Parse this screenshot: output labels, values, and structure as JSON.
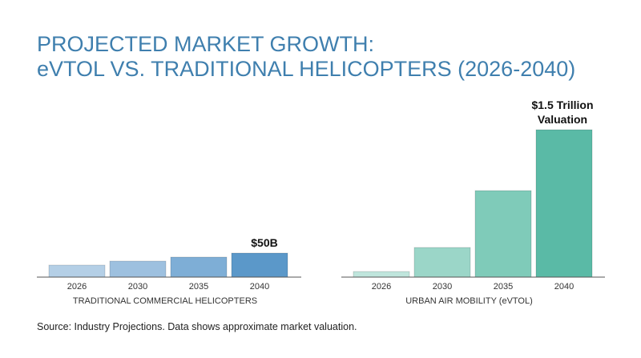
{
  "title": {
    "line1": "PROJECTED MARKET GROWTH:",
    "line2": "eVTOL VS. TRADITIONAL HELICOPTERS (2026-2040)"
  },
  "source": "Source: Industry Projections. Data shows approximate market valuation.",
  "colors": {
    "title": "#3f7fae",
    "left_bars": [
      "#b4cfe6",
      "#9dc0df",
      "#7eaed6",
      "#5b98c9"
    ],
    "right_bars": [
      "#bfe5dc",
      "#9bd6c8",
      "#7fcbb9",
      "#5abaa6"
    ]
  },
  "chart_data": [
    {
      "type": "bar",
      "categories": [
        "2026",
        "2030",
        "2035",
        "2040"
      ],
      "values": [
        15,
        20,
        25,
        30
      ],
      "xlabel": "TRADITIONAL COMMERCIAL HELICOPTERS",
      "ylabel": "",
      "ylim": [
        0,
        180
      ],
      "annotation": {
        "category": "2040",
        "text": "$50B"
      }
    },
    {
      "type": "bar",
      "categories": [
        "2026",
        "2030",
        "2035",
        "2040"
      ],
      "values": [
        7,
        37,
        108,
        184
      ],
      "xlabel": "URBAN AIR MOBILITY (eVTOL)",
      "ylabel": "",
      "ylim": [
        0,
        180
      ],
      "annotation": {
        "category": "2040",
        "lines": [
          "$1.5 Trillion",
          "Valuation"
        ]
      }
    }
  ]
}
